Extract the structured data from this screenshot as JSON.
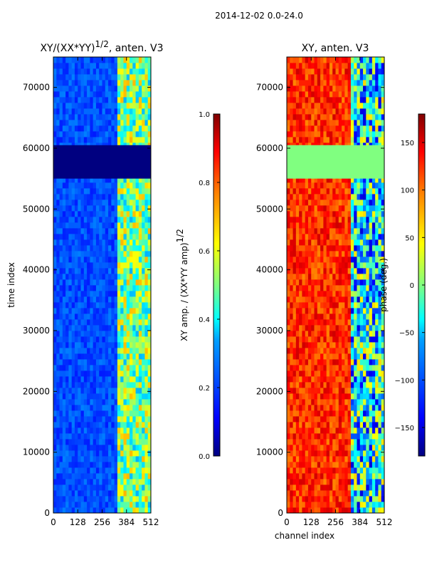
{
  "figure_title": "2014-12-02 0.0-24.0",
  "x_axis_label": "channel index",
  "colors": {
    "jet": [
      "#000080",
      "#0000ff",
      "#0080ff",
      "#00ffff",
      "#80ff80",
      "#ffff00",
      "#ff8000",
      "#ff0000",
      "#800000"
    ]
  },
  "chart_data": [
    {
      "type": "heatmap",
      "title_main": "XY/(XX*YY)",
      "title_exp": "1/2",
      "title_suffix": ", anten. V3",
      "xlabel": "",
      "ylabel": "time index",
      "xlim": [
        0,
        512
      ],
      "ylim": [
        0,
        75000
      ],
      "xticks": [
        0,
        128,
        256,
        384,
        512
      ],
      "xtick_labels": [
        "0",
        "128",
        "256",
        "384",
        "512"
      ],
      "yticks": [
        0,
        10000,
        20000,
        30000,
        40000,
        50000,
        60000,
        70000
      ],
      "ytick_labels": [
        "0",
        "10000",
        "20000",
        "30000",
        "40000",
        "50000",
        "60000",
        "70000"
      ],
      "colorbar": {
        "label_main": "XY amp. / (XX*YY amp)",
        "label_exp": "1/2",
        "range": [
          0,
          1
        ],
        "ticks": [
          0,
          0.2,
          0.4,
          0.6,
          0.8,
          1.0
        ],
        "tick_labels": [
          "0.0",
          "0.2",
          "0.4",
          "0.6",
          "0.8",
          "1.0"
        ]
      },
      "blank_time_range": [
        55000,
        60500
      ],
      "blank_value": 0.0,
      "structure": {
        "background_value": 0.2,
        "active_channel_range": [
          330,
          512
        ],
        "active_value_range": [
          0.3,
          0.7
        ]
      }
    },
    {
      "type": "heatmap",
      "title_main": "XY, anten. V3",
      "xlabel": "channel index",
      "ylabel": "",
      "xlim": [
        0,
        512
      ],
      "ylim": [
        0,
        75000
      ],
      "xticks": [
        0,
        128,
        256,
        384,
        512
      ],
      "xtick_labels": [
        "0",
        "128",
        "256",
        "384",
        "512"
      ],
      "yticks": [
        0,
        10000,
        20000,
        30000,
        40000,
        50000,
        60000,
        70000
      ],
      "ytick_labels": [
        "0",
        "10000",
        "20000",
        "30000",
        "40000",
        "50000",
        "60000",
        "70000"
      ],
      "colorbar": {
        "label": "phase (deg.)",
        "range": [
          -180,
          180
        ],
        "ticks": [
          -150,
          -100,
          -50,
          0,
          50,
          100,
          150
        ],
        "tick_labels": [
          "−150",
          "−100",
          "−50",
          "0",
          "50",
          "100",
          "150"
        ]
      },
      "blank_time_range": [
        55000,
        60500
      ],
      "blank_value": 0,
      "structure": {
        "background_value": 120,
        "active_channel_range": [
          330,
          512
        ],
        "active_value_range": [
          -150,
          60
        ]
      }
    }
  ]
}
